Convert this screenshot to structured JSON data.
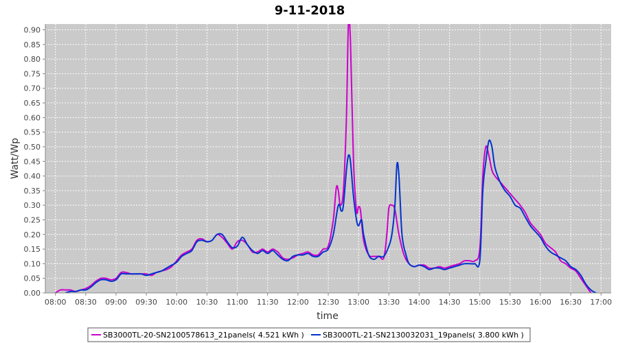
{
  "chart_data": {
    "type": "line",
    "title": "9-11-2018",
    "xlabel": "time",
    "ylabel": "Watt/Wp",
    "xlim": [
      "07:50",
      "17:10"
    ],
    "ylim": [
      0,
      0.92
    ],
    "x_ticks": [
      "08:00",
      "08:30",
      "09:00",
      "09:30",
      "10:00",
      "10:30",
      "11:00",
      "11:30",
      "12:00",
      "12:30",
      "13:00",
      "13:30",
      "14:00",
      "14:30",
      "15:00",
      "15:30",
      "16:00",
      "16:30",
      "17:00"
    ],
    "y_ticks": [
      "0.00",
      "0.05",
      "0.10",
      "0.15",
      "0.20",
      "0.25",
      "0.30",
      "0.35",
      "0.40",
      "0.45",
      "0.50",
      "0.55",
      "0.60",
      "0.65",
      "0.70",
      "0.75",
      "0.80",
      "0.85",
      "0.90"
    ],
    "grid": true,
    "legend_position": "bottom",
    "colors": {
      "background": "#cacaca",
      "grid": "#ffffff"
    },
    "series": [
      {
        "name": "SB3000TL-20-SN2100578613_21panels( 4.521 kWh )",
        "color": "#cc00cc",
        "points": [
          [
            "08:00",
            0.0
          ],
          [
            "08:05",
            0.01
          ],
          [
            "08:10",
            0.01
          ],
          [
            "08:15",
            0.01
          ],
          [
            "08:20",
            0.005
          ],
          [
            "08:25",
            0.01
          ],
          [
            "08:30",
            0.015
          ],
          [
            "08:35",
            0.025
          ],
          [
            "08:40",
            0.04
          ],
          [
            "08:45",
            0.05
          ],
          [
            "08:50",
            0.05
          ],
          [
            "08:55",
            0.045
          ],
          [
            "09:00",
            0.05
          ],
          [
            "09:05",
            0.07
          ],
          [
            "09:10",
            0.07
          ],
          [
            "09:15",
            0.065
          ],
          [
            "09:20",
            0.065
          ],
          [
            "09:25",
            0.065
          ],
          [
            "09:30",
            0.065
          ],
          [
            "09:35",
            0.06
          ],
          [
            "09:40",
            0.07
          ],
          [
            "09:45",
            0.075
          ],
          [
            "09:50",
            0.08
          ],
          [
            "09:55",
            0.09
          ],
          [
            "10:00",
            0.11
          ],
          [
            "10:05",
            0.13
          ],
          [
            "10:10",
            0.14
          ],
          [
            "10:15",
            0.15
          ],
          [
            "10:20",
            0.18
          ],
          [
            "10:25",
            0.185
          ],
          [
            "10:30",
            0.175
          ],
          [
            "10:35",
            0.18
          ],
          [
            "10:40",
            0.2
          ],
          [
            "10:45",
            0.19
          ],
          [
            "10:50",
            0.17
          ],
          [
            "10:55",
            0.15
          ],
          [
            "11:00",
            0.175
          ],
          [
            "11:05",
            0.18
          ],
          [
            "11:10",
            0.165
          ],
          [
            "11:15",
            0.14
          ],
          [
            "11:20",
            0.14
          ],
          [
            "11:25",
            0.15
          ],
          [
            "11:30",
            0.14
          ],
          [
            "11:35",
            0.15
          ],
          [
            "11:40",
            0.14
          ],
          [
            "11:45",
            0.12
          ],
          [
            "11:50",
            0.115
          ],
          [
            "11:55",
            0.12
          ],
          [
            "12:00",
            0.13
          ],
          [
            "12:05",
            0.135
          ],
          [
            "12:10",
            0.14
          ],
          [
            "12:15",
            0.13
          ],
          [
            "12:20",
            0.13
          ],
          [
            "12:25",
            0.15
          ],
          [
            "12:30",
            0.16
          ],
          [
            "12:35",
            0.25
          ],
          [
            "12:38",
            0.36
          ],
          [
            "12:40",
            0.35
          ],
          [
            "12:42",
            0.3
          ],
          [
            "12:45",
            0.35
          ],
          [
            "12:48",
            0.6
          ],
          [
            "12:50",
            0.92
          ],
          [
            "12:52",
            0.86
          ],
          [
            "12:55",
            0.45
          ],
          [
            "12:58",
            0.28
          ],
          [
            "13:00",
            0.295
          ],
          [
            "13:02",
            0.28
          ],
          [
            "13:05",
            0.18
          ],
          [
            "13:10",
            0.13
          ],
          [
            "13:15",
            0.125
          ],
          [
            "13:20",
            0.125
          ],
          [
            "13:25",
            0.12
          ],
          [
            "13:28",
            0.2
          ],
          [
            "13:30",
            0.29
          ],
          [
            "13:33",
            0.3
          ],
          [
            "13:36",
            0.285
          ],
          [
            "13:40",
            0.2
          ],
          [
            "13:45",
            0.13
          ],
          [
            "13:50",
            0.1
          ],
          [
            "13:55",
            0.09
          ],
          [
            "14:00",
            0.095
          ],
          [
            "14:05",
            0.095
          ],
          [
            "14:10",
            0.085
          ],
          [
            "14:15",
            0.085
          ],
          [
            "14:20",
            0.09
          ],
          [
            "14:25",
            0.085
          ],
          [
            "14:30",
            0.09
          ],
          [
            "14:35",
            0.095
          ],
          [
            "14:40",
            0.1
          ],
          [
            "14:45",
            0.11
          ],
          [
            "14:50",
            0.11
          ],
          [
            "14:55",
            0.11
          ],
          [
            "15:00",
            0.15
          ],
          [
            "15:03",
            0.4
          ],
          [
            "15:06",
            0.5
          ],
          [
            "15:09",
            0.47
          ],
          [
            "15:12",
            0.42
          ],
          [
            "15:15",
            0.4
          ],
          [
            "15:20",
            0.38
          ],
          [
            "15:25",
            0.36
          ],
          [
            "15:30",
            0.34
          ],
          [
            "15:35",
            0.32
          ],
          [
            "15:40",
            0.3
          ],
          [
            "15:45",
            0.275
          ],
          [
            "15:50",
            0.24
          ],
          [
            "15:55",
            0.22
          ],
          [
            "16:00",
            0.2
          ],
          [
            "16:05",
            0.17
          ],
          [
            "16:10",
            0.155
          ],
          [
            "16:15",
            0.14
          ],
          [
            "16:20",
            0.11
          ],
          [
            "16:25",
            0.1
          ],
          [
            "16:30",
            0.085
          ],
          [
            "16:35",
            0.075
          ],
          [
            "16:40",
            0.05
          ],
          [
            "16:45",
            0.025
          ],
          [
            "16:50",
            0.0
          ]
        ]
      },
      {
        "name": "SB3000TL-21-SN2130032031_19panels( 3.800 kWh )",
        "color": "#0033cc",
        "points": [
          [
            "08:10",
            0.0
          ],
          [
            "08:15",
            0.005
          ],
          [
            "08:20",
            0.005
          ],
          [
            "08:25",
            0.01
          ],
          [
            "08:30",
            0.01
          ],
          [
            "08:35",
            0.02
          ],
          [
            "08:40",
            0.035
          ],
          [
            "08:45",
            0.045
          ],
          [
            "08:50",
            0.045
          ],
          [
            "08:55",
            0.04
          ],
          [
            "09:00",
            0.045
          ],
          [
            "09:05",
            0.065
          ],
          [
            "09:10",
            0.065
          ],
          [
            "09:15",
            0.065
          ],
          [
            "09:20",
            0.065
          ],
          [
            "09:25",
            0.065
          ],
          [
            "09:30",
            0.06
          ],
          [
            "09:35",
            0.065
          ],
          [
            "09:40",
            0.07
          ],
          [
            "09:45",
            0.075
          ],
          [
            "09:50",
            0.085
          ],
          [
            "09:55",
            0.095
          ],
          [
            "10:00",
            0.105
          ],
          [
            "10:05",
            0.125
          ],
          [
            "10:10",
            0.135
          ],
          [
            "10:15",
            0.145
          ],
          [
            "10:20",
            0.175
          ],
          [
            "10:25",
            0.18
          ],
          [
            "10:30",
            0.175
          ],
          [
            "10:35",
            0.18
          ],
          [
            "10:40",
            0.2
          ],
          [
            "10:45",
            0.2
          ],
          [
            "10:50",
            0.175
          ],
          [
            "10:55",
            0.155
          ],
          [
            "11:00",
            0.16
          ],
          [
            "11:05",
            0.19
          ],
          [
            "11:10",
            0.165
          ],
          [
            "11:15",
            0.145
          ],
          [
            "11:20",
            0.135
          ],
          [
            "11:25",
            0.145
          ],
          [
            "11:30",
            0.135
          ],
          [
            "11:35",
            0.145
          ],
          [
            "11:40",
            0.13
          ],
          [
            "11:45",
            0.115
          ],
          [
            "11:50",
            0.11
          ],
          [
            "11:55",
            0.125
          ],
          [
            "12:00",
            0.13
          ],
          [
            "12:05",
            0.13
          ],
          [
            "12:10",
            0.135
          ],
          [
            "12:15",
            0.125
          ],
          [
            "12:20",
            0.125
          ],
          [
            "12:25",
            0.14
          ],
          [
            "12:30",
            0.15
          ],
          [
            "12:35",
            0.2
          ],
          [
            "12:40",
            0.3
          ],
          [
            "12:43",
            0.28
          ],
          [
            "12:45",
            0.3
          ],
          [
            "12:48",
            0.42
          ],
          [
            "12:50",
            0.47
          ],
          [
            "12:52",
            0.45
          ],
          [
            "12:55",
            0.33
          ],
          [
            "12:58",
            0.25
          ],
          [
            "13:00",
            0.23
          ],
          [
            "13:03",
            0.25
          ],
          [
            "13:05",
            0.2
          ],
          [
            "13:10",
            0.13
          ],
          [
            "13:15",
            0.115
          ],
          [
            "13:20",
            0.125
          ],
          [
            "13:25",
            0.125
          ],
          [
            "13:30",
            0.16
          ],
          [
            "13:33",
            0.2
          ],
          [
            "13:36",
            0.3
          ],
          [
            "13:38",
            0.44
          ],
          [
            "13:40",
            0.4
          ],
          [
            "13:43",
            0.2
          ],
          [
            "13:47",
            0.13
          ],
          [
            "13:50",
            0.1
          ],
          [
            "13:55",
            0.09
          ],
          [
            "14:00",
            0.095
          ],
          [
            "14:05",
            0.09
          ],
          [
            "14:10",
            0.08
          ],
          [
            "14:15",
            0.085
          ],
          [
            "14:20",
            0.085
          ],
          [
            "14:25",
            0.08
          ],
          [
            "14:30",
            0.085
          ],
          [
            "14:35",
            0.09
          ],
          [
            "14:40",
            0.095
          ],
          [
            "14:45",
            0.1
          ],
          [
            "14:50",
            0.1
          ],
          [
            "14:55",
            0.1
          ],
          [
            "15:00",
            0.11
          ],
          [
            "15:03",
            0.35
          ],
          [
            "15:06",
            0.45
          ],
          [
            "15:09",
            0.52
          ],
          [
            "15:12",
            0.5
          ],
          [
            "15:15",
            0.43
          ],
          [
            "15:20",
            0.38
          ],
          [
            "15:25",
            0.35
          ],
          [
            "15:30",
            0.33
          ],
          [
            "15:35",
            0.3
          ],
          [
            "15:40",
            0.29
          ],
          [
            "15:45",
            0.26
          ],
          [
            "15:50",
            0.23
          ],
          [
            "15:55",
            0.21
          ],
          [
            "16:00",
            0.19
          ],
          [
            "16:05",
            0.16
          ],
          [
            "16:10",
            0.14
          ],
          [
            "16:15",
            0.13
          ],
          [
            "16:20",
            0.12
          ],
          [
            "16:25",
            0.11
          ],
          [
            "16:30",
            0.09
          ],
          [
            "16:35",
            0.08
          ],
          [
            "16:40",
            0.06
          ],
          [
            "16:45",
            0.03
          ],
          [
            "16:50",
            0.01
          ],
          [
            "16:55",
            0.0
          ]
        ]
      }
    ]
  }
}
